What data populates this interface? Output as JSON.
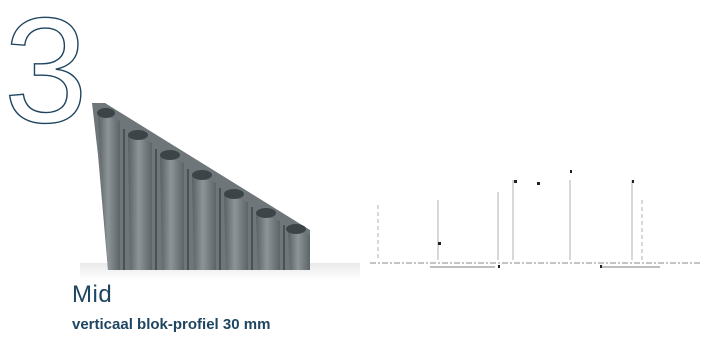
{
  "numeral": {
    "value": "3",
    "stroke_color": "#1f4560"
  },
  "product": {
    "name": "Mid",
    "description": "verticaal blok-profiel 30 mm",
    "text_color": "#1f4560",
    "body_color": "#6e767a",
    "shadow_color": "#3d4447"
  }
}
